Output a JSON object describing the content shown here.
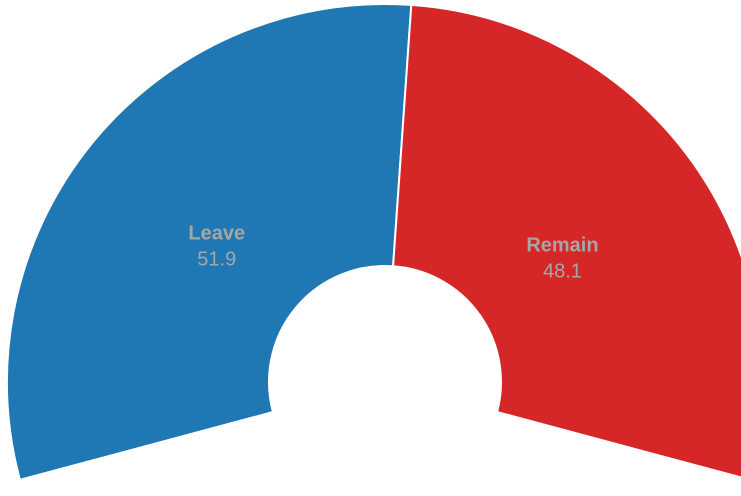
{
  "chart_data": {
    "type": "pie",
    "variant": "semi-donut",
    "categories": [
      "Leave",
      "Remain"
    ],
    "values": [
      51.9,
      48.1
    ],
    "colors": [
      "#1f77b4",
      "#d62728"
    ],
    "title": "",
    "legend": "none"
  }
}
